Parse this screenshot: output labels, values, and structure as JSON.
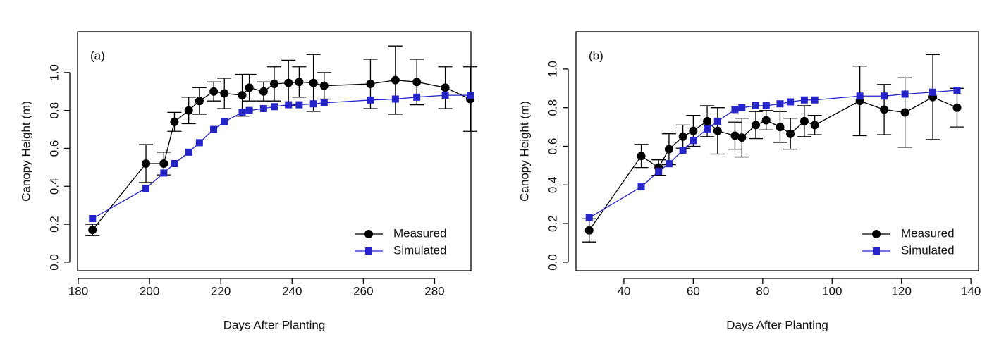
{
  "chart_data": [
    {
      "type": "line",
      "annotation": "(a)",
      "x_label": "Days After Planting",
      "y_label": "Canopy Height (m)",
      "x": [
        184,
        199,
        204,
        207,
        211,
        214,
        218,
        221,
        226,
        228,
        232,
        235,
        239,
        242,
        246,
        249,
        262,
        269,
        275,
        283,
        290
      ],
      "series": [
        {
          "name": "Measured",
          "color": "#000000",
          "marker": "circle",
          "values": [
            0.17,
            0.52,
            0.52,
            0.74,
            0.8,
            0.85,
            0.9,
            0.89,
            0.88,
            0.92,
            0.9,
            0.94,
            0.945,
            0.95,
            0.945,
            0.93,
            0.94,
            0.96,
            0.95,
            0.92,
            0.86
          ],
          "errors": [
            0.03,
            0.1,
            0.06,
            0.05,
            0.07,
            0.07,
            0.05,
            0.08,
            0.11,
            0.07,
            0.05,
            0.09,
            0.12,
            0.08,
            0.15,
            0.07,
            0.13,
            0.18,
            0.12,
            0.11,
            0.17
          ]
        },
        {
          "name": "Simulated",
          "color": "#2424c8",
          "marker": "square",
          "values": [
            0.23,
            0.39,
            0.47,
            0.52,
            0.58,
            0.63,
            0.7,
            0.74,
            0.79,
            0.8,
            0.81,
            0.82,
            0.83,
            0.83,
            0.835,
            0.84,
            0.855,
            0.86,
            0.87,
            0.88,
            0.88
          ]
        }
      ],
      "xlim": [
        179.8,
        290.2
      ],
      "xticks": [
        180,
        200,
        220,
        240,
        260,
        280
      ],
      "ylim": [
        -0.045,
        1.215
      ],
      "yticks": [
        {
          "value": 0,
          "label": "0.0"
        },
        0.2,
        0.4,
        0.6,
        0.8,
        {
          "value": 1,
          "label": "1.0"
        }
      ],
      "legend": "bottom-right"
    },
    {
      "type": "line",
      "annotation": "(b)",
      "x_label": "Days After Planting",
      "y_label": "Canopy Height (m)",
      "x": [
        30,
        45,
        50,
        53,
        57,
        60,
        64,
        67,
        72,
        74,
        78,
        81,
        85,
        88,
        92,
        95,
        108,
        115,
        121,
        129,
        136
      ],
      "series": [
        {
          "name": "Measured",
          "color": "#000000",
          "marker": "circle",
          "values": [
            0.165,
            0.55,
            0.49,
            0.585,
            0.65,
            0.68,
            0.73,
            0.68,
            0.655,
            0.645,
            0.71,
            0.735,
            0.7,
            0.665,
            0.73,
            0.71,
            0.835,
            0.79,
            0.775,
            0.855,
            0.8
          ],
          "errors": [
            0.06,
            0.06,
            0.04,
            0.08,
            0.06,
            0.08,
            0.08,
            0.12,
            0.07,
            0.1,
            0.07,
            0.05,
            0.08,
            0.08,
            0.08,
            0.05,
            0.18,
            0.13,
            0.18,
            0.22,
            0.1
          ]
        },
        {
          "name": "Simulated",
          "color": "#2424c8",
          "marker": "square",
          "values": [
            0.23,
            0.39,
            0.47,
            0.51,
            0.58,
            0.63,
            0.69,
            0.73,
            0.79,
            0.8,
            0.81,
            0.81,
            0.82,
            0.83,
            0.84,
            0.84,
            0.86,
            0.86,
            0.87,
            0.88,
            0.89
          ]
        }
      ],
      "xlim": [
        26.2,
        142.2
      ],
      "xticks": [
        40,
        60,
        80,
        100,
        120,
        140
      ],
      "ylim": [
        -0.044,
        1.193
      ],
      "yticks": [
        {
          "value": 0,
          "label": "0.0"
        },
        0.2,
        0.4,
        0.6,
        0.8,
        {
          "value": 1,
          "label": "1.0"
        }
      ],
      "legend": "bottom-right"
    }
  ]
}
